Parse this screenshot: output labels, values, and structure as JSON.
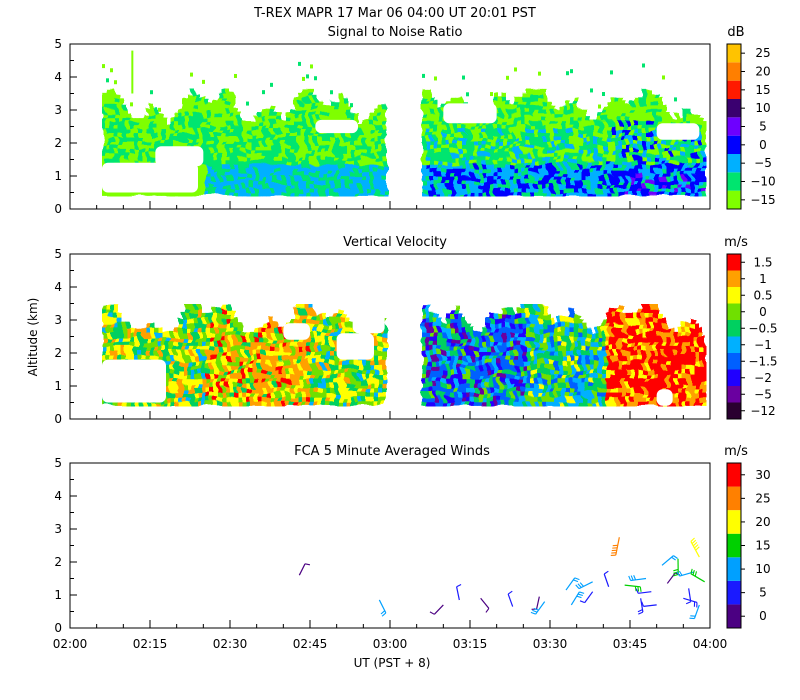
{
  "figure": {
    "title": "T-REX   MAPR 17 Mar 06   04:00 UT   20:01   PST",
    "xlabel": "UT  (PST + 8)",
    "ylabel": "Altitude (km)",
    "xticks": [
      "02:00",
      "02:15",
      "02:30",
      "02:45",
      "03:00",
      "03:15",
      "03:30",
      "03:45",
      "04:00"
    ],
    "xrange_minutes": [
      0,
      120
    ]
  },
  "chart_data": [
    {
      "type": "heatmap",
      "title": "Signal to Noise Ratio",
      "units": "dB",
      "ylim": [
        0,
        5
      ],
      "yticks": [
        "0",
        "1",
        "2",
        "3",
        "4",
        "5"
      ],
      "colorbar": {
        "labels": [
          "−15",
          "−10",
          "−5",
          "0",
          "5",
          "10",
          "15",
          "20",
          "25"
        ],
        "colors": [
          "#7fff00",
          "#00e56f",
          "#00b0ff",
          "#0000ff",
          "#6e00ff",
          "#3a0070",
          "#ff1a00",
          "#ff7f00",
          "#ffc300"
        ]
      },
      "data_gap_minutes": [
        59,
        66
      ],
      "cover_minutes": [
        6,
        119
      ],
      "cover_alt_km": [
        0.4,
        3.8
      ]
    },
    {
      "type": "heatmap",
      "title": "Vertical Velocity",
      "units": "m/s",
      "ylim": [
        0,
        5
      ],
      "yticks": [
        "0",
        "1",
        "2",
        "3",
        "4",
        "5"
      ],
      "colorbar": {
        "labels": [
          "−12",
          "−5",
          "−2",
          "−1.5",
          "−1",
          "−0.5",
          "0",
          "0.5",
          "1",
          "1.5"
        ],
        "colors": [
          "#2a0030",
          "#6a00a0",
          "#2000ff",
          "#0060ff",
          "#00b0ff",
          "#00d060",
          "#70e000",
          "#ffff00",
          "#ffa000",
          "#ff0000"
        ]
      },
      "data_gap_minutes": [
        59,
        66
      ],
      "cover_minutes": [
        6,
        119
      ],
      "cover_alt_km": [
        0.4,
        3.6
      ]
    },
    {
      "type": "wind-barbs",
      "title": "FCA 5 Minute Averaged Winds",
      "units": "m/s",
      "ylim": [
        0,
        5
      ],
      "yticks": [
        "0",
        "1",
        "2",
        "3",
        "4",
        "5"
      ],
      "colorbar": {
        "labels": [
          "0",
          "5",
          "10",
          "15",
          "20",
          "25",
          "30"
        ],
        "colors": [
          "#4b0082",
          "#1a1aff",
          "#00a0ff",
          "#00d000",
          "#ffff00",
          "#ff8000",
          "#ff0000"
        ]
      },
      "barbs": [
        {
          "t": 43,
          "alt": 1.6,
          "speed": 3
        },
        {
          "t": 58,
          "alt": 0.85,
          "speed": 10
        },
        {
          "t": 70,
          "alt": 0.7,
          "speed": 4
        },
        {
          "t": 73,
          "alt": 0.85,
          "speed": 6
        },
        {
          "t": 77,
          "alt": 0.9,
          "speed": 4
        },
        {
          "t": 83,
          "alt": 0.65,
          "speed": 5
        },
        {
          "t": 88,
          "alt": 0.95,
          "speed": 3
        },
        {
          "t": 89,
          "alt": 0.8,
          "speed": 14
        },
        {
          "t": 93,
          "alt": 1.15,
          "speed": 12
        },
        {
          "t": 94,
          "alt": 0.7,
          "speed": 13
        },
        {
          "t": 98,
          "alt": 1.1,
          "speed": 6
        },
        {
          "t": 98,
          "alt": 1.4,
          "speed": 13
        },
        {
          "t": 101,
          "alt": 1.25,
          "speed": 6
        },
        {
          "t": 103,
          "alt": 2.75,
          "speed": 27
        },
        {
          "t": 104,
          "alt": 1.3,
          "speed": 15
        },
        {
          "t": 107,
          "alt": 0.9,
          "speed": 8
        },
        {
          "t": 108,
          "alt": 1.5,
          "speed": 14
        },
        {
          "t": 109,
          "alt": 1.1,
          "speed": 5
        },
        {
          "t": 110,
          "alt": 0.7,
          "speed": 5
        },
        {
          "t": 111,
          "alt": 1.9,
          "speed": 12
        },
        {
          "t": 112,
          "alt": 1.35,
          "speed": 4
        },
        {
          "t": 114,
          "alt": 2.1,
          "speed": 15
        },
        {
          "t": 115,
          "alt": 0.9,
          "speed": 9
        },
        {
          "t": 116,
          "alt": 1.2,
          "speed": 6
        },
        {
          "t": 117,
          "alt": 1.7,
          "speed": 12
        },
        {
          "t": 118,
          "alt": 2.15,
          "speed": 23
        },
        {
          "t": 118,
          "alt": 0.7,
          "speed": 10
        },
        {
          "t": 119,
          "alt": 1.4,
          "speed": 16
        }
      ]
    }
  ]
}
